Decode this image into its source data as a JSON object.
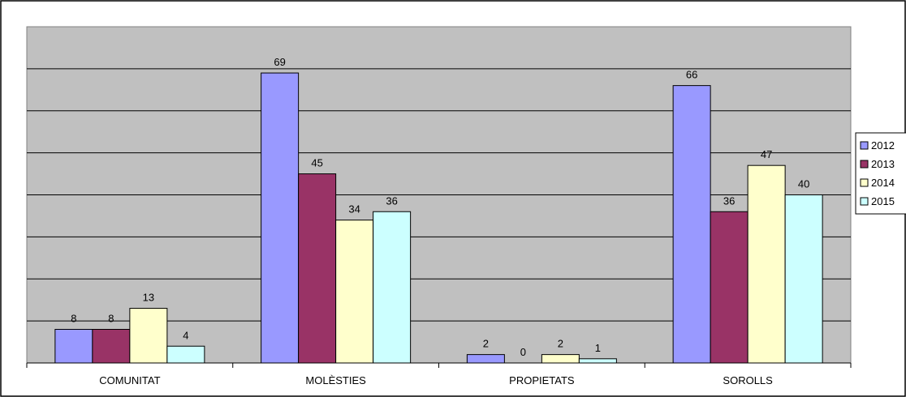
{
  "chart_data": {
    "type": "bar",
    "title": "",
    "xlabel": "",
    "ylabel": "",
    "categories": [
      "COMUNITAT",
      "MOLÈSTIES",
      "PROPIETATS",
      "SOROLLS"
    ],
    "series": [
      {
        "name": "2012",
        "values": [
          8,
          69,
          2,
          66
        ],
        "color": "#9999ff"
      },
      {
        "name": "2013",
        "values": [
          8,
          45,
          0,
          36
        ],
        "color": "#993366"
      },
      {
        "name": "2014",
        "values": [
          13,
          34,
          2,
          47
        ],
        "color": "#ffffcc"
      },
      {
        "name": "2015",
        "values": [
          4,
          36,
          1,
          40
        ],
        "color": "#ccffff"
      }
    ],
    "ylim": [
      0,
      80
    ],
    "gridline_step": 10,
    "grid": true,
    "y_tick_labels_shown": false,
    "legend_position": "right",
    "plot_background": "#c0c0c0",
    "border_color": "#000000"
  }
}
